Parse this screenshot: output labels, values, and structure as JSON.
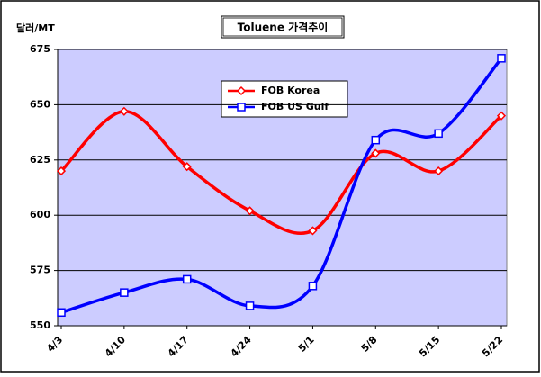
{
  "chart_data": {
    "type": "line",
    "title": "Toluene 가격추이",
    "y_label": "달러/MT",
    "categories": [
      "4/3",
      "4/10",
      "4/17",
      "4/24",
      "5/1",
      "5/8",
      "5/15",
      "5/22"
    ],
    "series": [
      {
        "name": "FOB Korea",
        "color": "#ff0000",
        "marker": "diamond",
        "values": [
          620,
          647,
          622,
          602,
          593,
          628,
          620,
          645
        ]
      },
      {
        "name": "FOB US Gulf",
        "color": "#0000ff",
        "marker": "square",
        "values": [
          556,
          565,
          571,
          559,
          568,
          634,
          637,
          671
        ]
      }
    ],
    "ylim": [
      550,
      675
    ],
    "yticks": [
      550,
      575,
      600,
      625,
      650,
      675
    ],
    "grid": true,
    "smooth": true,
    "plot_color": "#ccccff"
  }
}
